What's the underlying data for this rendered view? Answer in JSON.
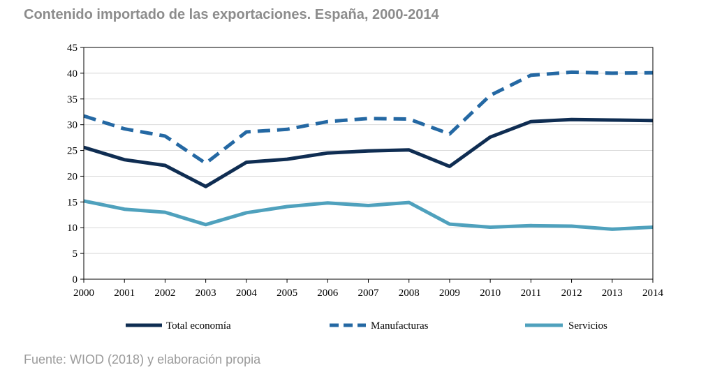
{
  "title": "Contenido importado de las exportaciones. España, 2000-2014",
  "source": "Fuente: WIOD (2018) y elaboración propia",
  "chart_data": {
    "type": "line",
    "title": "Contenido importado de las exportaciones. España, 2000-2014",
    "xlabel": "",
    "ylabel": "",
    "ylim": [
      0,
      45
    ],
    "yticks": [
      0,
      5,
      10,
      15,
      20,
      25,
      30,
      35,
      40,
      45
    ],
    "grid": "horizontal",
    "legend": "bottom",
    "x": [
      "2000",
      "2001",
      "2002",
      "2003",
      "2004",
      "2005",
      "2006",
      "2007",
      "2008",
      "2009",
      "2010",
      "2011",
      "2012",
      "2013",
      "2014"
    ],
    "series": [
      {
        "name": "Total economía",
        "style": "solid",
        "color": "#0f2d52",
        "values": [
          25.6,
          23.2,
          22.1,
          18.0,
          22.7,
          23.3,
          24.5,
          24.9,
          25.1,
          21.9,
          27.6,
          30.6,
          31.0,
          30.9,
          30.8
        ]
      },
      {
        "name": "Manufacturas",
        "style": "dashed",
        "color": "#2468a3",
        "values": [
          31.7,
          29.2,
          27.8,
          22.5,
          28.6,
          29.1,
          30.6,
          31.2,
          31.1,
          28.2,
          35.7,
          39.6,
          40.2,
          40.0,
          40.1
        ]
      },
      {
        "name": "Servicios",
        "style": "solid",
        "color": "#4fa1bd",
        "values": [
          15.2,
          13.6,
          13.0,
          10.6,
          12.9,
          14.1,
          14.8,
          14.3,
          14.9,
          10.7,
          10.1,
          10.4,
          10.3,
          9.7,
          10.1
        ]
      }
    ]
  }
}
